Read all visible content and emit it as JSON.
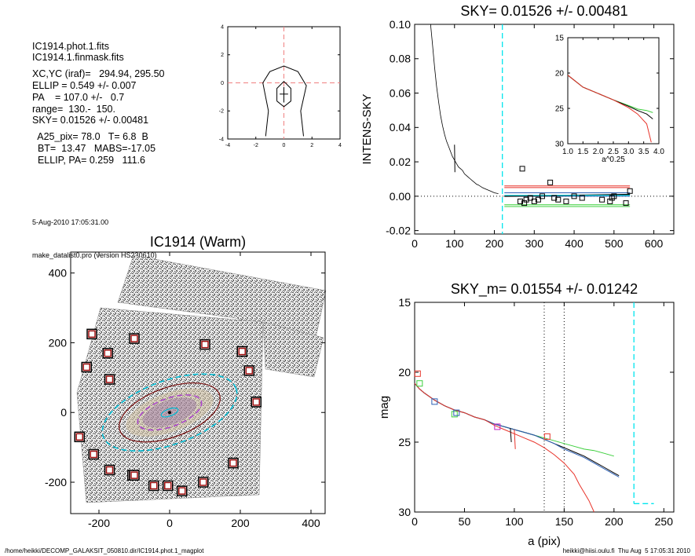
{
  "info": {
    "lines": [
      "IC1914.phot.1.fits",
      "IC1914.1.finmask.fits",
      "",
      "XC,YC (iraf)=   294.94, 295.50",
      "ELLIP = 0.549 +/- 0.007",
      "PA    = 107.0 +/-   0.7",
      "range=  130.-  150.",
      "SKY= 0.01526 +/- 0.00481",
      "",
      "  A25_pix= 78.0   T= 6.8  B",
      "  BT=  13.47   MABS=-17.05",
      "  ELLIP, PA= 0.259   111.6"
    ],
    "timestamp": "5-Aug-2010 17:05:31.00",
    "program": "make_datalist0.pro (version HS230610)"
  },
  "footer": {
    "left": "/home/heikki/DECOMP_GALAKSIT_050810.dir/IC1914.phot.1_magplot",
    "right": "heikki@hiisi.oulu.fi  Thu Aug  5 17:05:31 2010"
  },
  "colors": {
    "sky_line": "#00e5ee",
    "red": "#e8332a",
    "green": "#3ccf3c",
    "blue": "#2b5fb5",
    "black": "#000000",
    "pink_dash": "#f08080"
  },
  "chart_data": [
    {
      "type": "line",
      "panel": "centering contours",
      "xlim": [
        -4,
        4
      ],
      "ylim": [
        -4,
        4
      ],
      "xticks": [
        -4,
        -2,
        0,
        2,
        4
      ],
      "yticks": [
        -4,
        -2,
        0,
        2,
        4
      ],
      "contours": [
        [
          [
            -1.3,
            -3.8
          ],
          [
            -1.1,
            -2.0
          ],
          [
            -1.5,
            0
          ],
          [
            -1.0,
            0.8
          ],
          [
            0,
            1.2
          ],
          [
            1.0,
            0.8
          ],
          [
            1.6,
            -0.2
          ],
          [
            1.2,
            -2.0
          ],
          [
            1.4,
            -3.8
          ]
        ],
        [
          [
            -0.5,
            -1.3
          ],
          [
            -0.5,
            -0.4
          ],
          [
            0,
            0.1
          ],
          [
            0.5,
            -0.4
          ],
          [
            0.5,
            -1.3
          ],
          [
            0,
            -1.7
          ],
          [
            -0.5,
            -1.3
          ]
        ]
      ],
      "crosshair": [
        0,
        0
      ]
    },
    {
      "type": "line",
      "title": "SKY= 0.01526 +/- 0.00481",
      "ylabel": "INTENS-SKY",
      "xlim": [
        0,
        650
      ],
      "ylim": [
        -0.022,
        0.1
      ],
      "xticks": [
        0,
        100,
        200,
        300,
        400,
        500,
        600
      ],
      "yticks": [
        -0.02,
        0.0,
        0.02,
        0.04,
        0.06,
        0.08,
        0.1
      ],
      "ytick_labels": [
        "-0.02",
        "0.00",
        "0.02",
        "0.04",
        "0.06",
        "0.08",
        "0.10"
      ],
      "sky_marker_x": 220,
      "profile": {
        "x": [
          40,
          45,
          50,
          55,
          60,
          65,
          70,
          75,
          80,
          85,
          90,
          95,
          100,
          105,
          110,
          115,
          120,
          125,
          130,
          135,
          140,
          145,
          150,
          155,
          160,
          170,
          180,
          190,
          200,
          210
        ],
        "y": [
          0.1,
          0.088,
          0.075,
          0.064,
          0.055,
          0.047,
          0.041,
          0.036,
          0.032,
          0.029,
          0.026,
          0.023,
          0.021,
          0.019,
          0.017,
          0.016,
          0.015,
          0.013,
          0.012,
          0.011,
          0.01,
          0.009,
          0.008,
          0.007,
          0.0065,
          0.005,
          0.004,
          0.003,
          0.002,
          0.0015
        ]
      },
      "squares": {
        "x": [
          265,
          270,
          275,
          280,
          290,
          300,
          310,
          320,
          340,
          350,
          360,
          380,
          400,
          420,
          470,
          490,
          495,
          500,
          530,
          540
        ],
        "y": [
          -0.003,
          0.016,
          -0.004,
          -0.002,
          -0.001,
          -0.003,
          -0.002,
          0.0,
          0.008,
          -0.001,
          -0.002,
          -0.003,
          0.0,
          -0.001,
          -0.002,
          -0.003,
          -0.001,
          0.0,
          -0.004,
          0.003
        ]
      },
      "bands": [
        {
          "color": "red",
          "y": [
            0.005,
            0.006
          ]
        },
        {
          "color": "green",
          "y": [
            -0.005,
            -0.006
          ]
        },
        {
          "color": "blue",
          "y": [
            0.0,
            0.002
          ]
        }
      ],
      "inset": {
        "xlabel": "a^0.25",
        "xlim": [
          1.0,
          4.0
        ],
        "ylim": [
          15,
          30
        ],
        "xticks": [
          1.0,
          1.5,
          2.0,
          2.5,
          3.0,
          3.5,
          4.0
        ],
        "yticks": [
          15,
          20,
          25,
          30
        ],
        "series": [
          {
            "color": "green",
            "x": [
              1.0,
              1.5,
              2.0,
              2.5,
              3.0,
              3.3,
              3.6,
              3.8
            ],
            "y": [
              20.3,
              22.0,
              22.9,
              23.8,
              24.6,
              25.1,
              25.3,
              25.6
            ]
          },
          {
            "color": "black",
            "x": [
              1.0,
              1.5,
              2.0,
              2.5,
              3.0,
              3.3,
              3.6,
              3.8
            ],
            "y": [
              20.3,
              22.0,
              22.9,
              23.8,
              24.7,
              25.3,
              25.8,
              26.5
            ]
          },
          {
            "color": "red",
            "x": [
              1.0,
              1.5,
              2.0,
              2.5,
              3.0,
              3.3,
              3.6,
              3.75
            ],
            "y": [
              20.3,
              22.0,
              22.9,
              23.8,
              24.9,
              25.8,
              27.2,
              29.8
            ]
          }
        ]
      }
    },
    {
      "type": "scatter",
      "title": "IC1914 (Warm)",
      "xlim": [
        -280,
        440
      ],
      "ylim": [
        -290,
        460
      ],
      "xticks": [
        -200,
        0,
        200,
        400
      ],
      "yticks": [
        -200,
        0,
        200,
        400
      ],
      "sky_boxes": {
        "x": [
          -100,
          -220,
          -235,
          -255,
          -175,
          -170,
          -105,
          -170,
          -215,
          -100,
          -45,
          -5,
          35,
          95,
          180,
          245,
          225,
          205,
          100,
          205,
          245
        ],
        "y": [
          212,
          225,
          130,
          -70,
          170,
          95,
          -180,
          -165,
          -120,
          -180,
          -210,
          -210,
          -225,
          -200,
          -145,
          30,
          120,
          175,
          195,
          175,
          30
        ]
      },
      "ellipses": [
        {
          "color": "#00bcd4",
          "a": 200,
          "b": 90,
          "pa": 20,
          "dashed": true
        },
        {
          "color": "#7a1010",
          "a": 150,
          "b": 70,
          "pa": 20,
          "dashed": false
        },
        {
          "color": "#aa44cc",
          "a": 95,
          "b": 40,
          "pa": 20,
          "dashed": true
        },
        {
          "color": "#00bcd4",
          "a": 25,
          "b": 10,
          "pa": 20,
          "dashed": false
        }
      ]
    },
    {
      "type": "line",
      "title": "SKY_m=  0.01554 +/- 0.01242",
      "xlabel": "a (pix)",
      "ylabel": "mag",
      "xlim": [
        0,
        260
      ],
      "ylim": [
        15,
        30
      ],
      "xticks": [
        0,
        50,
        100,
        150,
        200,
        250
      ],
      "yticks": [
        15,
        20,
        25,
        30
      ],
      "vlines_dotted": [
        130,
        150
      ],
      "sky_marker_x": 220,
      "sky_segment": {
        "x": [
          220,
          240
        ],
        "y": 29.4
      },
      "series": [
        {
          "color": "green",
          "x": [
            0,
            5,
            10,
            20,
            30,
            40,
            50,
            60,
            70,
            80,
            90,
            100,
            110,
            120,
            130,
            140,
            150,
            160,
            170,
            180,
            190,
            200
          ],
          "y": [
            20.8,
            21.2,
            21.5,
            22.0,
            22.4,
            22.7,
            22.9,
            23.2,
            23.4,
            23.7,
            23.9,
            24.1,
            24.3,
            24.5,
            24.7,
            24.9,
            25.1,
            25.3,
            25.5,
            25.6,
            25.8,
            26.0
          ]
        },
        {
          "color": "black",
          "x": [
            0,
            5,
            10,
            20,
            30,
            40,
            50,
            60,
            70,
            80,
            90,
            100,
            110,
            120,
            130,
            140,
            150,
            160,
            170,
            180,
            190,
            200,
            205
          ],
          "y": [
            20.8,
            21.2,
            21.5,
            22.0,
            22.4,
            22.7,
            22.9,
            23.2,
            23.4,
            23.7,
            23.9,
            24.1,
            24.3,
            24.5,
            24.8,
            25.1,
            25.4,
            25.7,
            26.0,
            26.4,
            26.8,
            27.2,
            27.4
          ]
        },
        {
          "color": "blue",
          "x": [
            0,
            5,
            10,
            20,
            30,
            40,
            50,
            60,
            70,
            80,
            90,
            100,
            110,
            120,
            130,
            140,
            150,
            160,
            170,
            180,
            190,
            200,
            205
          ],
          "y": [
            20.8,
            21.2,
            21.5,
            22.0,
            22.4,
            22.7,
            22.9,
            23.2,
            23.4,
            23.7,
            23.9,
            24.1,
            24.3,
            24.5,
            24.8,
            25.1,
            25.5,
            25.8,
            26.1,
            26.5,
            26.9,
            27.3,
            27.5
          ]
        },
        {
          "color": "red",
          "x": [
            0,
            5,
            10,
            20,
            30,
            40,
            50,
            60,
            70,
            80,
            90,
            100,
            110,
            120,
            130,
            140,
            150,
            160,
            165,
            170,
            175,
            180
          ],
          "y": [
            20.8,
            21.2,
            21.5,
            22.0,
            22.4,
            22.7,
            22.9,
            23.2,
            23.4,
            23.8,
            24.1,
            24.4,
            24.7,
            25.0,
            25.4,
            25.9,
            26.5,
            27.3,
            28.0,
            28.6,
            29.2,
            30.0
          ]
        }
      ],
      "squares": [
        {
          "color": "red",
          "x": 3,
          "y": 20.1
        },
        {
          "color": "green",
          "x": 5,
          "y": 20.8
        },
        {
          "color": "blue",
          "x": 20,
          "y": 22.1
        },
        {
          "color": "green",
          "x": 40,
          "y": 23.0
        },
        {
          "color": "blue",
          "x": 42,
          "y": 22.9
        },
        {
          "color": "magenta",
          "x": 83,
          "y": 23.9
        },
        {
          "color": "red",
          "x": 133,
          "y": 24.6
        }
      ]
    }
  ]
}
